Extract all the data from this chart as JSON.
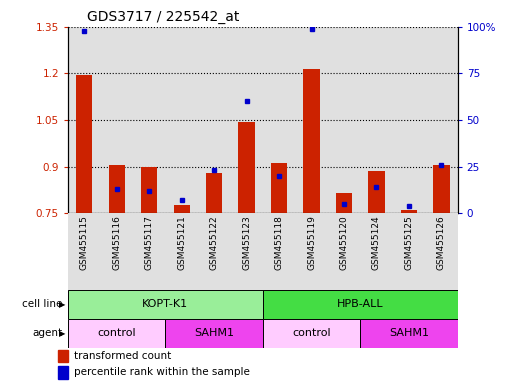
{
  "title": "GDS3717 / 225542_at",
  "samples": [
    "GSM455115",
    "GSM455116",
    "GSM455117",
    "GSM455121",
    "GSM455122",
    "GSM455123",
    "GSM455118",
    "GSM455119",
    "GSM455120",
    "GSM455124",
    "GSM455125",
    "GSM455126"
  ],
  "red_values": [
    1.195,
    0.905,
    0.9,
    0.775,
    0.88,
    1.045,
    0.91,
    1.215,
    0.815,
    0.885,
    0.76,
    0.905
  ],
  "blue_values": [
    98,
    13,
    12,
    7,
    23,
    60,
    20,
    99,
    5,
    14,
    4,
    26
  ],
  "red_base": 0.75,
  "ylim_left": [
    0.75,
    1.35
  ],
  "ylim_right": [
    0,
    100
  ],
  "yticks_left": [
    0.75,
    0.9,
    1.05,
    1.2,
    1.35
  ],
  "yticks_right": [
    0,
    25,
    50,
    75,
    100
  ],
  "ytick_labels_left": [
    "0.75",
    "0.9",
    "1.05",
    "1.2",
    "1.35"
  ],
  "ytick_labels_right": [
    "0",
    "25",
    "50",
    "75",
    "100%"
  ],
  "red_color": "#CC2200",
  "blue_color": "#0000CC",
  "bg_color": "#FFFFFF",
  "col_bg": "#E0E0E0",
  "cell_line_groups": [
    {
      "label": "KOPT-K1",
      "start": 0,
      "end": 6,
      "color": "#99EE99"
    },
    {
      "label": "HPB-ALL",
      "start": 6,
      "end": 12,
      "color": "#44DD44"
    }
  ],
  "agent_groups": [
    {
      "label": "control",
      "start": 0,
      "end": 3,
      "color": "#FFCCFF"
    },
    {
      "label": "SAHM1",
      "start": 3,
      "end": 6,
      "color": "#EE44EE"
    },
    {
      "label": "control",
      "start": 6,
      "end": 9,
      "color": "#FFCCFF"
    },
    {
      "label": "SAHM1",
      "start": 9,
      "end": 12,
      "color": "#EE44EE"
    }
  ],
  "legend_red": "transformed count",
  "legend_blue": "percentile rank within the sample",
  "cell_line_label": "cell line",
  "agent_label": "agent"
}
